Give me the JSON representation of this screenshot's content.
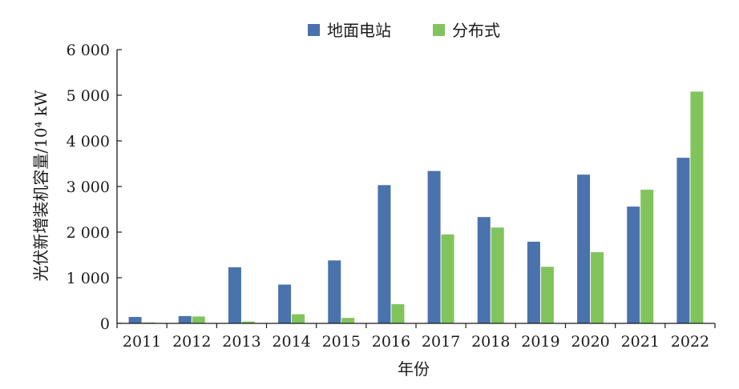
{
  "chart_data": {
    "type": "bar",
    "categories": [
      "2011",
      "2012",
      "2013",
      "2014",
      "2015",
      "2016",
      "2017",
      "2018",
      "2019",
      "2020",
      "2021",
      "2022"
    ],
    "series": [
      {
        "name": "地面电站",
        "color": "#4a72ac",
        "values": [
          140,
          160,
          1230,
          850,
          1380,
          3030,
          3340,
          2330,
          1790,
          3260,
          2560,
          3630
        ]
      },
      {
        "name": "分布式",
        "color": "#82c45c",
        "values": [
          20,
          150,
          40,
          200,
          120,
          420,
          1950,
          2100,
          1240,
          1560,
          2930,
          5080
        ]
      }
    ],
    "title": "",
    "xlabel": "年份",
    "ylabel": "光伏新增装机容量/10⁴ kW",
    "ylim": [
      0,
      6000
    ],
    "yticks": [
      0,
      1000,
      2000,
      3000,
      4000,
      5000,
      6000
    ],
    "ytick_labels": [
      "0",
      "1 000",
      "2 000",
      "3 000",
      "4 000",
      "5 000",
      "6 000"
    ],
    "grid": false,
    "legend_position": "top"
  }
}
